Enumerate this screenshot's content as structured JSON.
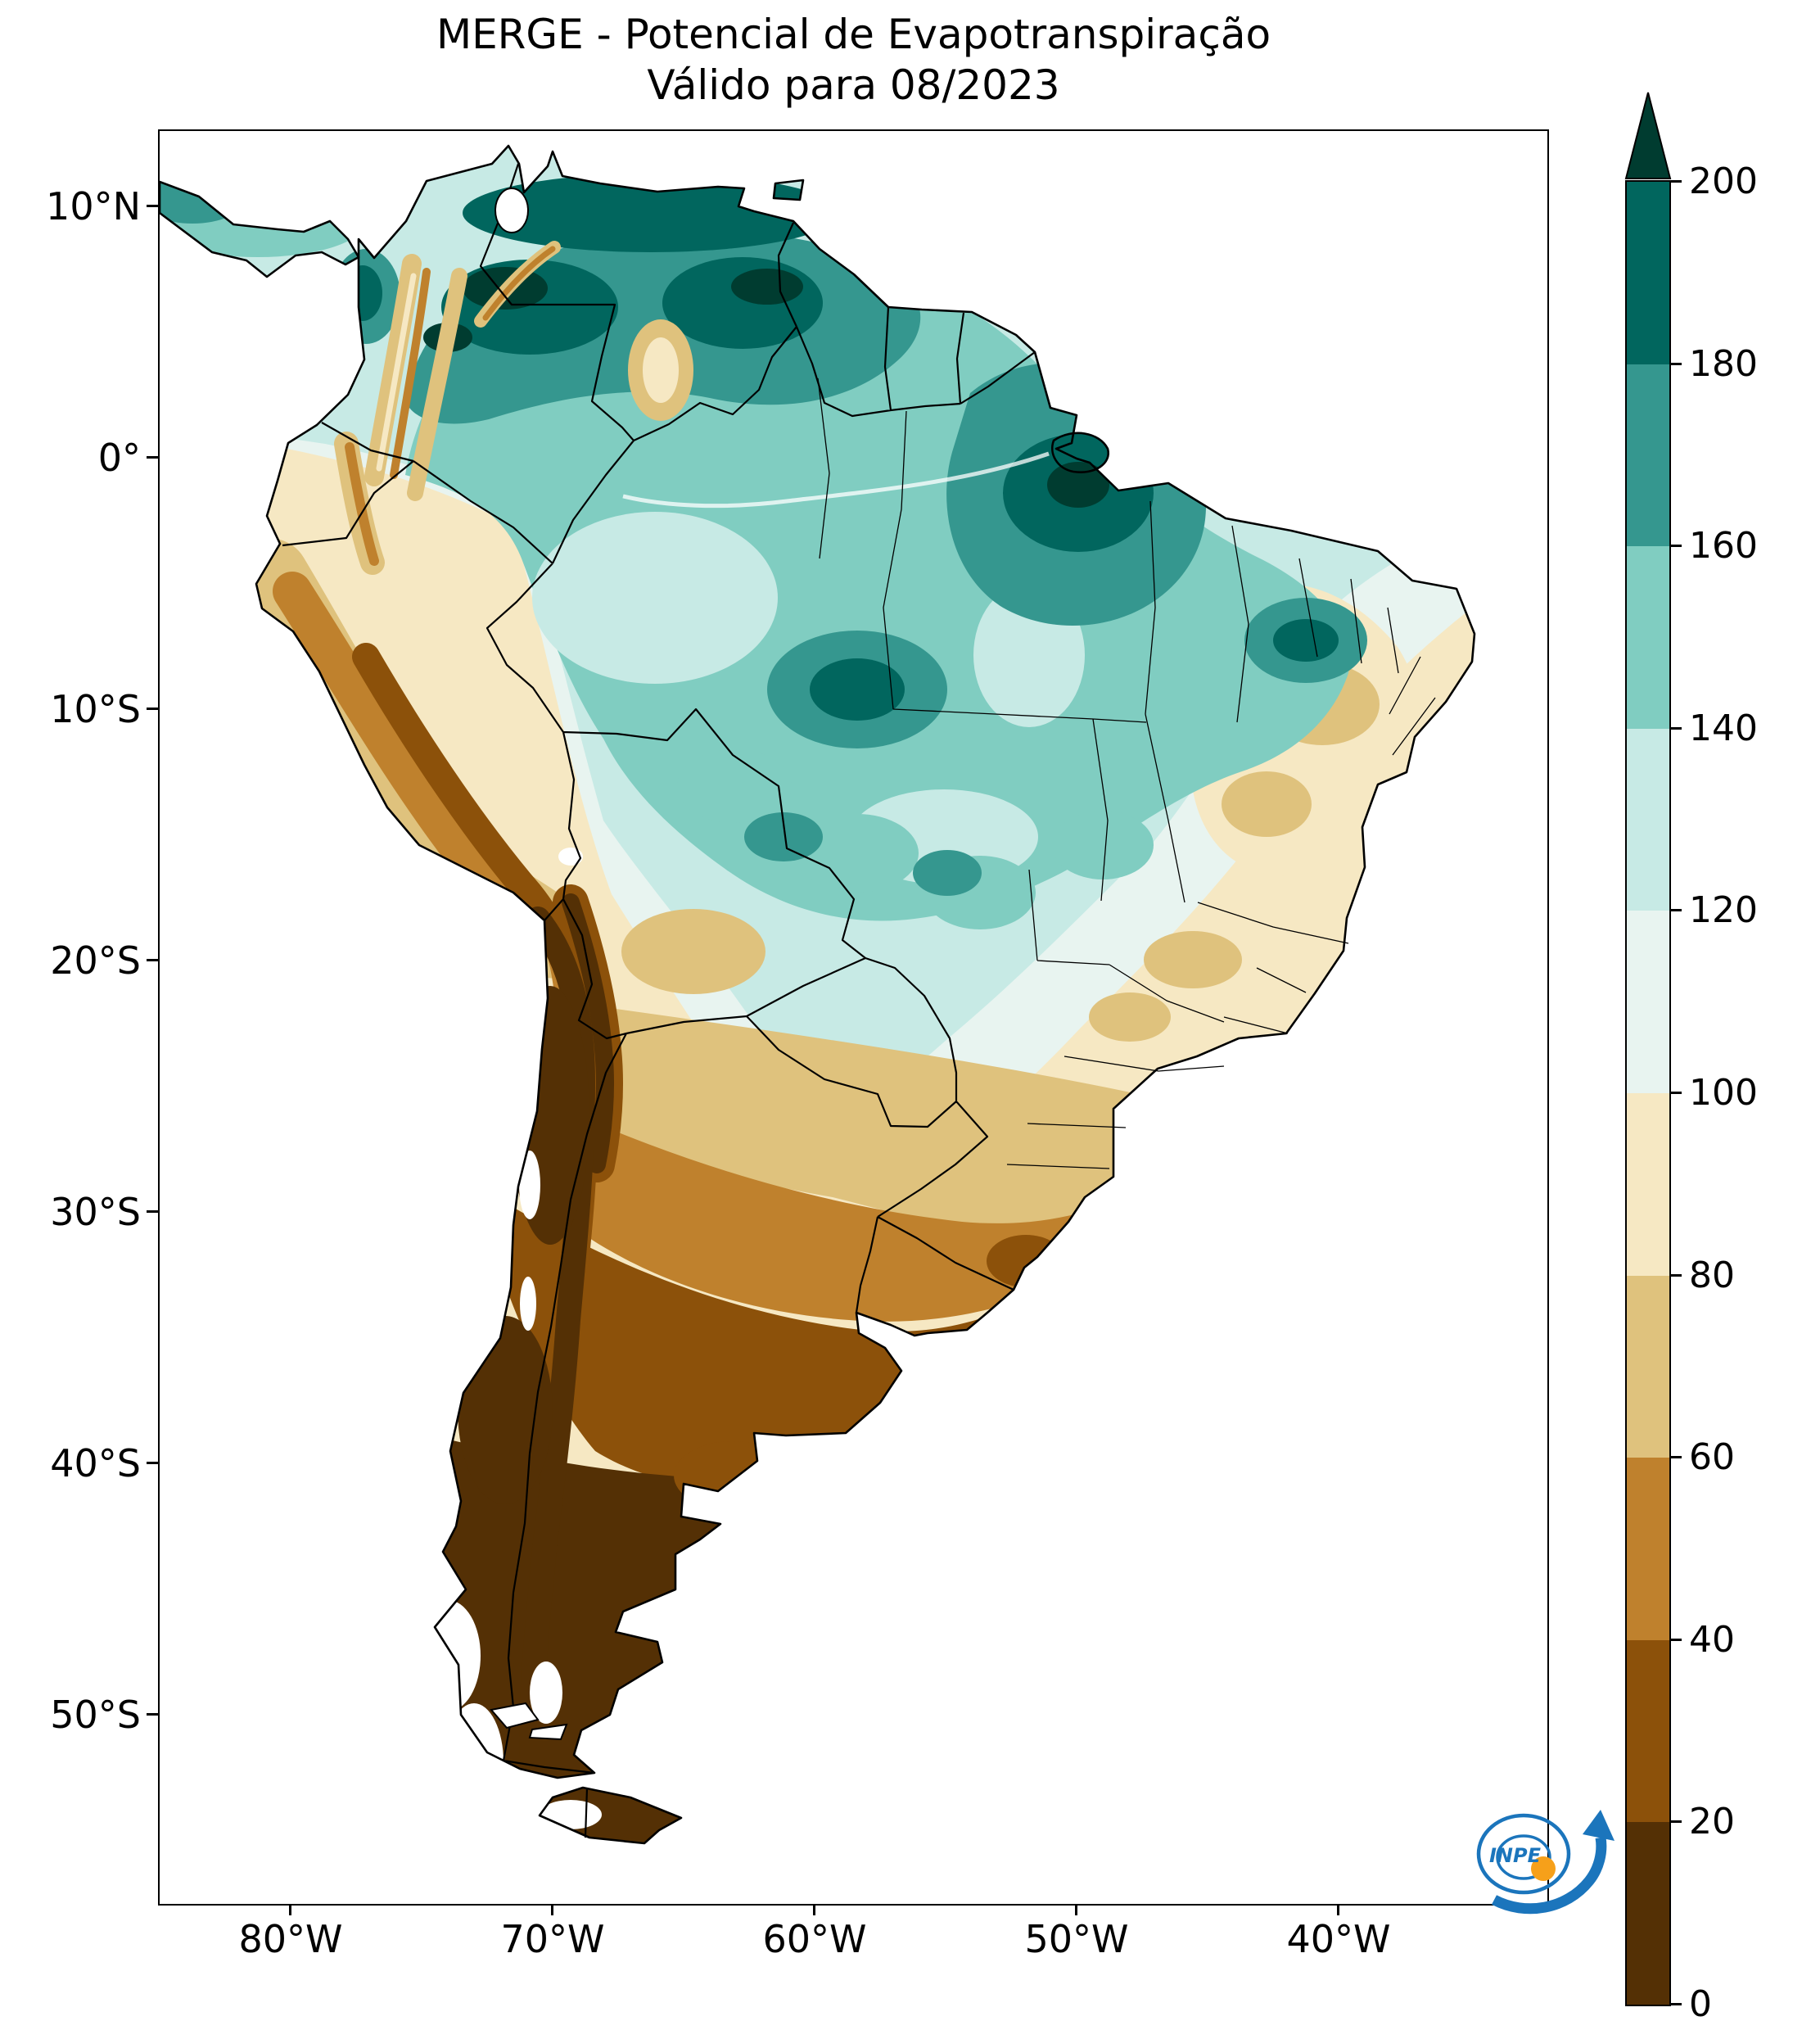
{
  "figure": {
    "title_line1": "MERGE - Potencial de Evapotranspiração",
    "title_line2": "Válido para 08/2023"
  },
  "axes": {
    "y_tick_labels": [
      "10°N",
      "0°",
      "10°S",
      "20°S",
      "30°S",
      "40°S",
      "50°S"
    ],
    "x_tick_labels": [
      "80°W",
      "70°W",
      "60°W",
      "50°W",
      "40°W"
    ]
  },
  "colorbar": {
    "tick_labels": [
      "200",
      "180",
      "160",
      "140",
      "120",
      "100",
      "80",
      "60",
      "40",
      "20",
      "0"
    ],
    "band_colors_top_to_bottom": [
      "#01665e",
      "#35978f",
      "#80cdc1",
      "#c7eae5",
      "#e8f4f0",
      "#f6e8c3",
      "#dfc27d",
      "#bf812d",
      "#8c510a",
      "#543005"
    ],
    "over_arrow_color": "#003c30"
  },
  "map": {
    "ocean_color": "#ffffff",
    "coastline_color": "#000000"
  },
  "logo": {
    "text": "INPE",
    "blue": "#1b75bc",
    "orange": "#f6a01a"
  },
  "chart_data": {
    "type": "heatmap",
    "title": "MERGE - Potencial de Evapotranspiração",
    "subtitle": "Válido para 08/2023",
    "colorbar_levels": [
      0,
      20,
      40,
      60,
      80,
      100,
      120,
      140,
      160,
      180,
      200
    ],
    "colorbar_extend": "max",
    "colorbar_colors_low_to_high": [
      "#543005",
      "#8c510a",
      "#bf812d",
      "#dfc27d",
      "#f6e8c3",
      "#e8f4f0",
      "#c7eae5",
      "#80cdc1",
      "#35978f",
      "#01665e"
    ],
    "lat_ticks": [
      "10°N",
      "0°",
      "10°S",
      "20°S",
      "30°S",
      "40°S",
      "50°S"
    ],
    "lon_ticks": [
      "80°W",
      "70°W",
      "60°W",
      "50°W",
      "40°W"
    ]
  }
}
